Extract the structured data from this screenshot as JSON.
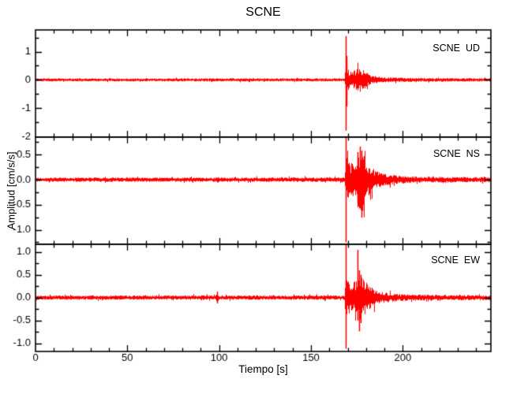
{
  "title": "SCNE",
  "chart_data": {
    "type": "line",
    "subtype": "seismogram-3-component",
    "title": "SCNE",
    "xlabel": "Tiempo [s]",
    "ylabel": "Amplitud [cm/s/s]",
    "xlim": [
      0,
      248
    ],
    "xticks": {
      "major": [
        0,
        50,
        100,
        150,
        200
      ],
      "labels": [
        "0",
        "50",
        "100",
        "150",
        "200"
      ],
      "minor_step": 10
    },
    "trace_color": "#ff0000",
    "axis_color": "#000000",
    "background": "#ffffff",
    "grid": false,
    "legend_position": "inside-top-right-per-panel",
    "panels": [
      {
        "label": "SCNE  UD",
        "seed": 11,
        "ylim": [
          -2.03,
          1.77
        ],
        "yticks": {
          "major": [
            1,
            0,
            -1,
            -2
          ],
          "labels": [
            "1",
            "0",
            "-1",
            "-2"
          ],
          "minor": [
            1.5,
            0.5,
            -0.5,
            -1.5
          ]
        },
        "envelope": [
          [
            0,
            0.042
          ],
          [
            168.2,
            0.042
          ],
          [
            168.8,
            0.5
          ],
          [
            169.6,
            0.3
          ],
          [
            171,
            0.24
          ],
          [
            173,
            0.24
          ],
          [
            176,
            0.33
          ],
          [
            177.5,
            0.33
          ],
          [
            179,
            0.25
          ],
          [
            181,
            0.17
          ],
          [
            184,
            0.12
          ],
          [
            188,
            0.085
          ],
          [
            194,
            0.065
          ],
          [
            202,
            0.055
          ],
          [
            248,
            0.045
          ]
        ],
        "spikes": [
          [
            168.75,
            1.55,
            -1.8
          ],
          [
            169.15,
            0.85,
            -0.95
          ]
        ]
      },
      {
        "label": "SCNE  NS",
        "seed": 22,
        "ylim": [
          -1.29,
          0.85
        ],
        "yticks": {
          "major": [
            0.5,
            0,
            -0.5,
            -1
          ],
          "labels": [
            "0.5",
            "0.0",
            "-0.5",
            "-1.0"
          ],
          "minor": [
            0.75,
            0.25,
            -0.25,
            -0.75,
            -1.25
          ]
        },
        "envelope": [
          [
            0,
            0.033
          ],
          [
            98.5,
            0.033
          ],
          [
            99,
            0.055
          ],
          [
            99.6,
            0.033
          ],
          [
            168.2,
            0.035
          ],
          [
            168.8,
            0.4
          ],
          [
            170,
            0.28
          ],
          [
            172,
            0.25
          ],
          [
            174,
            0.3
          ],
          [
            175.5,
            0.42
          ],
          [
            177,
            0.48
          ],
          [
            178,
            0.42
          ],
          [
            179.5,
            0.34
          ],
          [
            181,
            0.26
          ],
          [
            183,
            0.19
          ],
          [
            186,
            0.13
          ],
          [
            190,
            0.095
          ],
          [
            195,
            0.07
          ],
          [
            202,
            0.055
          ],
          [
            210,
            0.045
          ],
          [
            248,
            0.04
          ]
        ],
        "spikes": [
          [
            168.75,
            0.85,
            -0.55
          ],
          [
            169.05,
            0.5,
            -1.25
          ],
          [
            175.4,
            0.55,
            -0.45
          ],
          [
            176.5,
            0.66,
            -0.5
          ],
          [
            177.4,
            0.58,
            -0.76
          ],
          [
            178.1,
            0.45,
            -0.62
          ]
        ]
      },
      {
        "label": "SCNE  EW",
        "seed": 33,
        "ylim": [
          -1.18,
          1.17
        ],
        "yticks": {
          "major": [
            1,
            0.5,
            0,
            -0.5,
            -1
          ],
          "labels": [
            "1.0",
            "0.5",
            "0.0",
            "-0.5",
            "-1.0"
          ],
          "minor": [
            0.75,
            0.25,
            -0.25,
            -0.75
          ]
        },
        "envelope": [
          [
            0,
            0.035
          ],
          [
            98.2,
            0.038
          ],
          [
            98.9,
            0.1
          ],
          [
            99.6,
            0.045
          ],
          [
            100.3,
            0.037
          ],
          [
            168.2,
            0.037
          ],
          [
            168.8,
            0.42
          ],
          [
            170,
            0.28
          ],
          [
            172,
            0.25
          ],
          [
            174,
            0.29
          ],
          [
            175.8,
            0.4
          ],
          [
            177,
            0.38
          ],
          [
            178.5,
            0.32
          ],
          [
            180,
            0.27
          ],
          [
            182,
            0.2
          ],
          [
            185,
            0.14
          ],
          [
            189,
            0.095
          ],
          [
            194,
            0.07
          ],
          [
            200,
            0.058
          ],
          [
            210,
            0.05
          ],
          [
            248,
            0.042
          ]
        ],
        "spikes": [
          [
            98.9,
            0.13,
            -0.12
          ],
          [
            168.75,
            1.16,
            -1.12
          ],
          [
            169.05,
            0.55,
            -0.5
          ],
          [
            175.45,
            1.05,
            -0.5
          ],
          [
            176.35,
            0.6,
            -0.74
          ],
          [
            177.2,
            0.5,
            -0.56
          ]
        ]
      }
    ]
  }
}
